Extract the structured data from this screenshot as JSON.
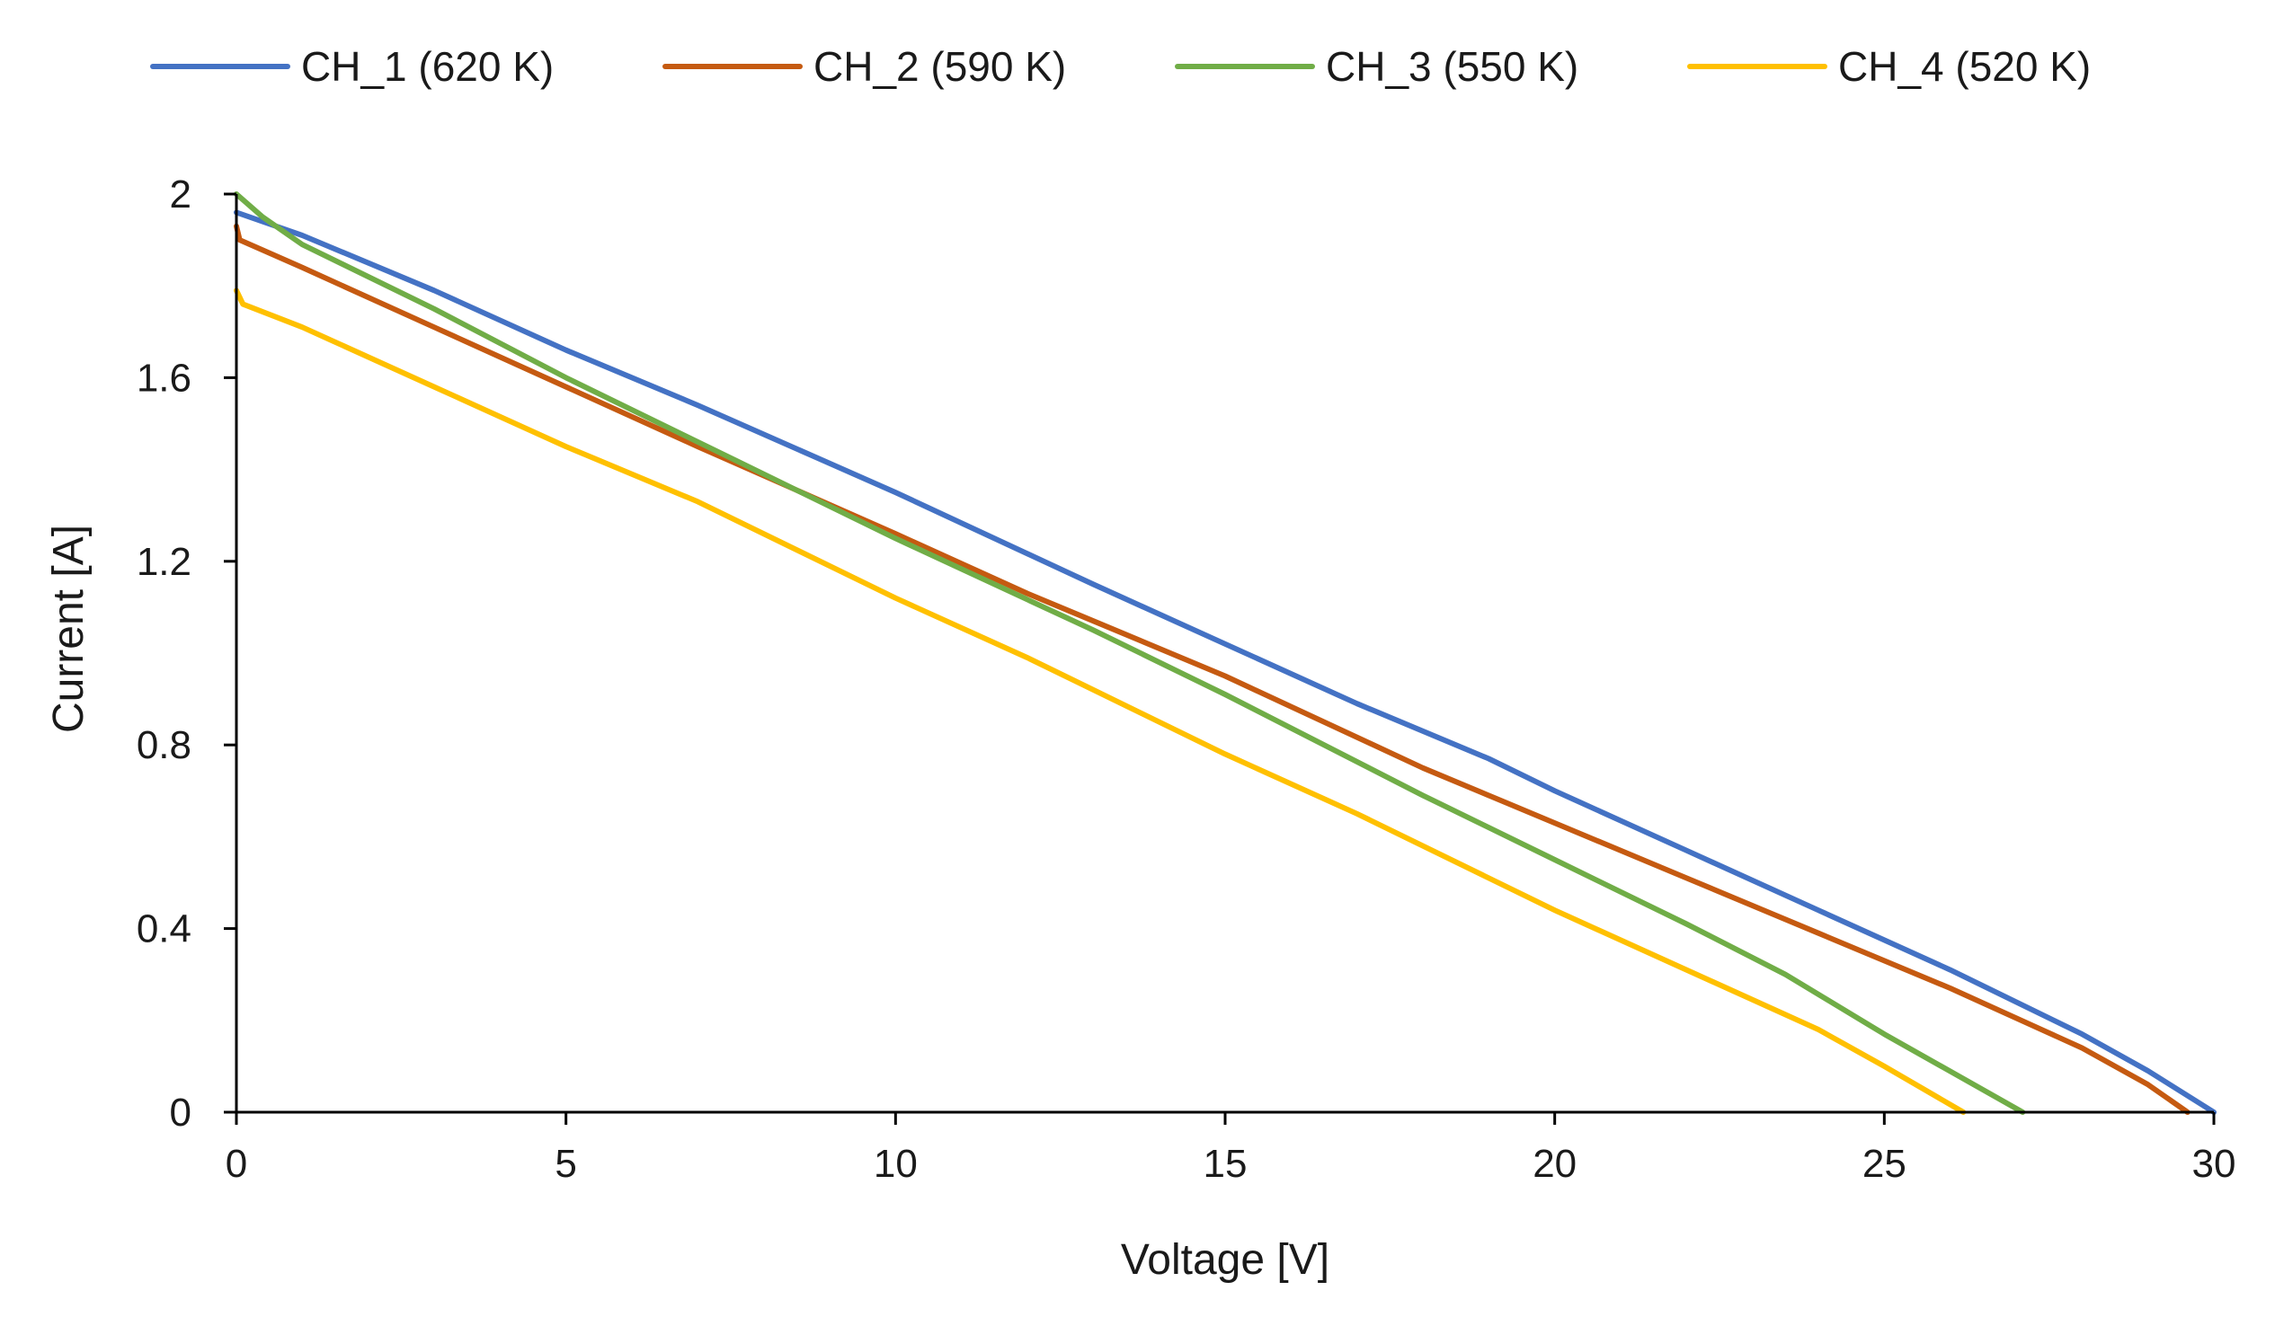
{
  "chart_data": {
    "type": "line",
    "xlabel": "Voltage [V]",
    "ylabel": "Current [A]",
    "xlim": [
      0,
      30
    ],
    "ylim": [
      0,
      2
    ],
    "xticks": [
      0,
      5,
      10,
      15,
      20,
      25,
      30
    ],
    "yticks": [
      0,
      0.4,
      0.8,
      1.2,
      1.6,
      2
    ],
    "ytick_labels": [
      "0",
      "0.4",
      "0.8",
      "1.2",
      "1.6",
      "2"
    ],
    "grid": false,
    "legend_position": "top",
    "series": [
      {
        "name": "CH_1 (620 K)",
        "color": "#4472C4",
        "x": [
          0,
          1,
          3,
          5,
          7,
          10,
          13,
          15,
          17,
          19,
          20,
          22,
          24,
          26,
          28,
          29,
          30
        ],
        "y": [
          1.96,
          1.91,
          1.79,
          1.66,
          1.54,
          1.35,
          1.15,
          1.02,
          0.89,
          0.77,
          0.7,
          0.57,
          0.44,
          0.31,
          0.17,
          0.09,
          0.0
        ]
      },
      {
        "name": "CH_2 (590 K)",
        "color": "#C55A11",
        "x": [
          0,
          0.05,
          1,
          3,
          5,
          7,
          10,
          12,
          13,
          15,
          18,
          20,
          22,
          24,
          26,
          28,
          29,
          29.6
        ],
        "y": [
          1.93,
          1.9,
          1.84,
          1.71,
          1.58,
          1.45,
          1.26,
          1.13,
          1.07,
          0.95,
          0.75,
          0.63,
          0.51,
          0.39,
          0.27,
          0.14,
          0.06,
          0.0
        ]
      },
      {
        "name": "CH_3 (550 K)",
        "color": "#70AD47",
        "x": [
          0,
          0.4,
          1,
          3,
          5,
          7,
          10,
          13,
          15,
          18,
          20,
          22,
          23.5,
          25,
          27.1
        ],
        "y": [
          2.0,
          1.95,
          1.89,
          1.75,
          1.6,
          1.46,
          1.25,
          1.05,
          0.91,
          0.69,
          0.55,
          0.41,
          0.3,
          0.17,
          0.0
        ]
      },
      {
        "name": "CH_4 (520 K)",
        "color": "#FFC000",
        "x": [
          0,
          0.1,
          1,
          3,
          5,
          7,
          10,
          12,
          15,
          17,
          20,
          22,
          24,
          25,
          26.2
        ],
        "y": [
          1.79,
          1.76,
          1.71,
          1.58,
          1.45,
          1.33,
          1.12,
          0.99,
          0.78,
          0.65,
          0.44,
          0.31,
          0.18,
          0.1,
          0.0
        ]
      }
    ]
  }
}
